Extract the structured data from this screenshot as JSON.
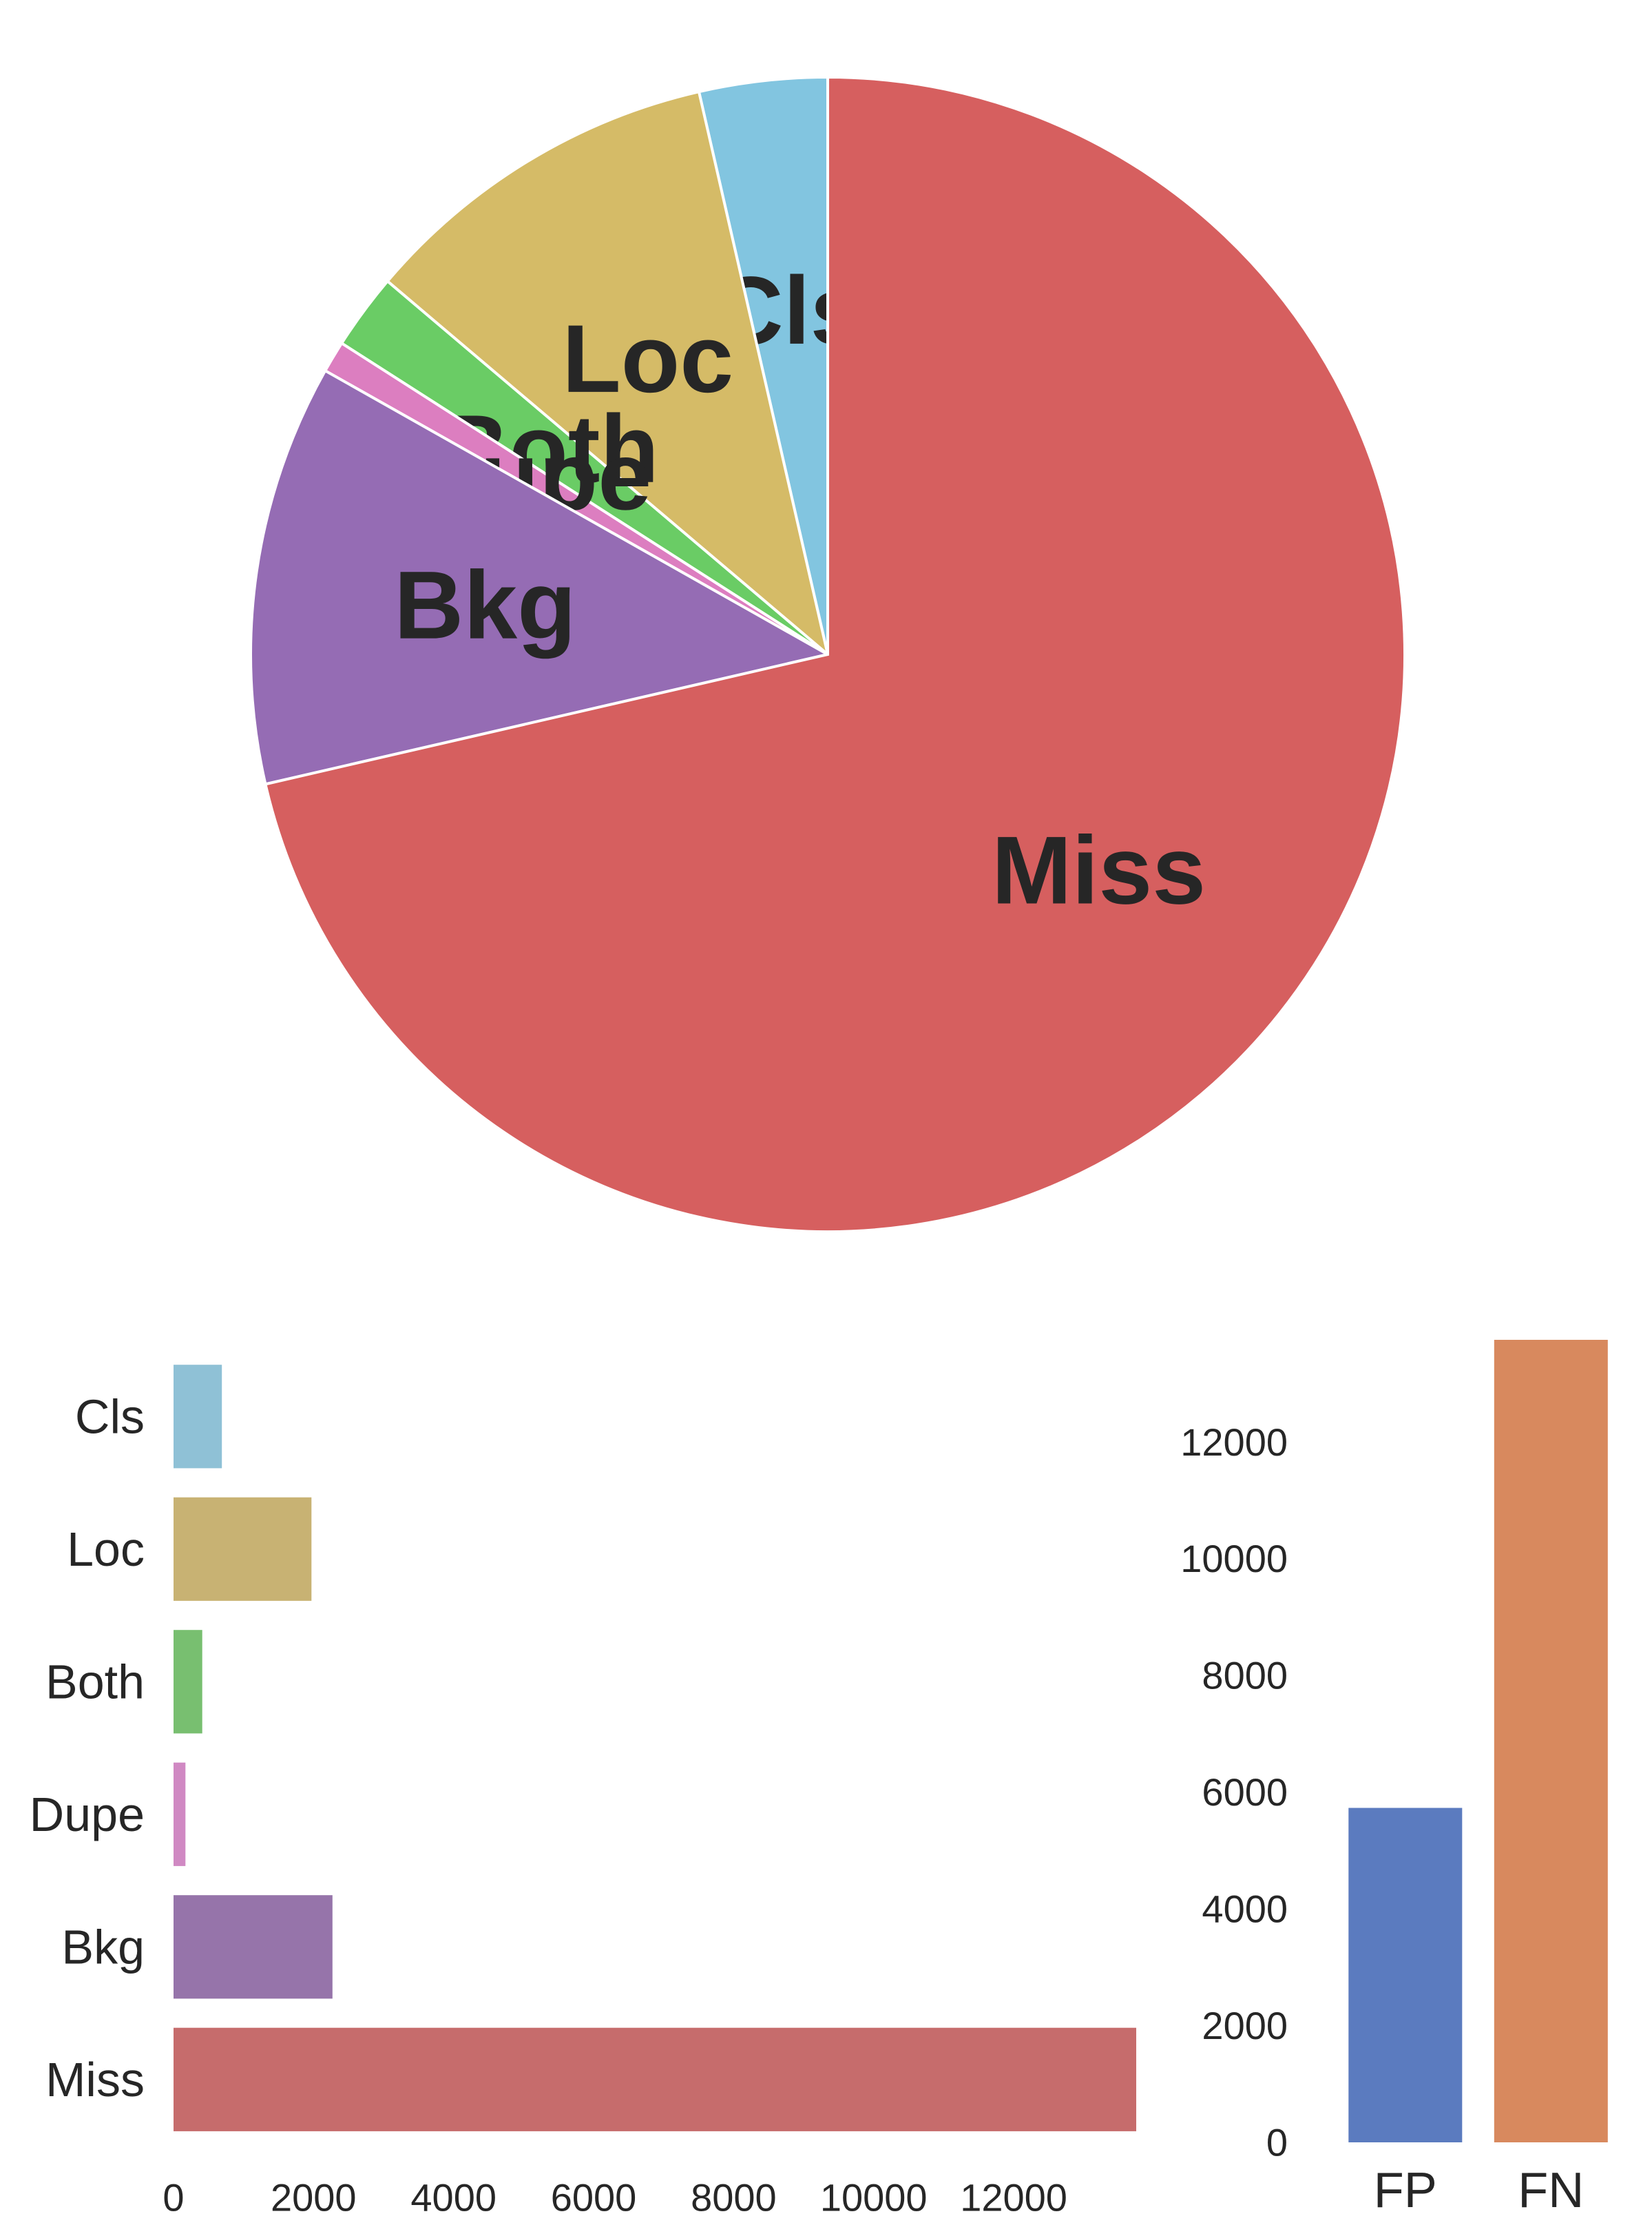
{
  "chart_data": [
    {
      "type": "pie",
      "labels": [
        "Cls",
        "Loc",
        "Both",
        "Dupe",
        "Bkg",
        "Miss"
      ],
      "values": [
        690,
        1970,
        410,
        170,
        2270,
        13750
      ],
      "colors": [
        "#82c5e0",
        "#d5bb67",
        "#6acc65",
        "#dc7ec0",
        "#956cb4",
        "#d65f5f"
      ],
      "start_angle_deg": 90,
      "direction": "counterclockwise"
    },
    {
      "type": "bar",
      "orientation": "horizontal",
      "categories": [
        "Cls",
        "Loc",
        "Both",
        "Dupe",
        "Bkg",
        "Miss"
      ],
      "values": [
        690,
        1970,
        410,
        170,
        2270,
        13750
      ],
      "colors": [
        "#8fc1d6",
        "#c8b273",
        "#78bf70",
        "#d089c3",
        "#9674aa",
        "#c66c6c"
      ],
      "xlim": [
        0,
        13750
      ],
      "xticks": [
        0,
        2000,
        4000,
        6000,
        8000,
        10000,
        12000
      ],
      "grid": false
    },
    {
      "type": "bar",
      "orientation": "vertical",
      "categories": [
        "FP",
        "FN"
      ],
      "values": [
        5730,
        13750
      ],
      "colors": [
        "#5b7bbf",
        "#d8895e"
      ],
      "ylim": [
        0,
        13750
      ],
      "yticks": [
        0,
        2000,
        4000,
        6000,
        8000,
        10000,
        12000
      ],
      "grid": false
    }
  ]
}
